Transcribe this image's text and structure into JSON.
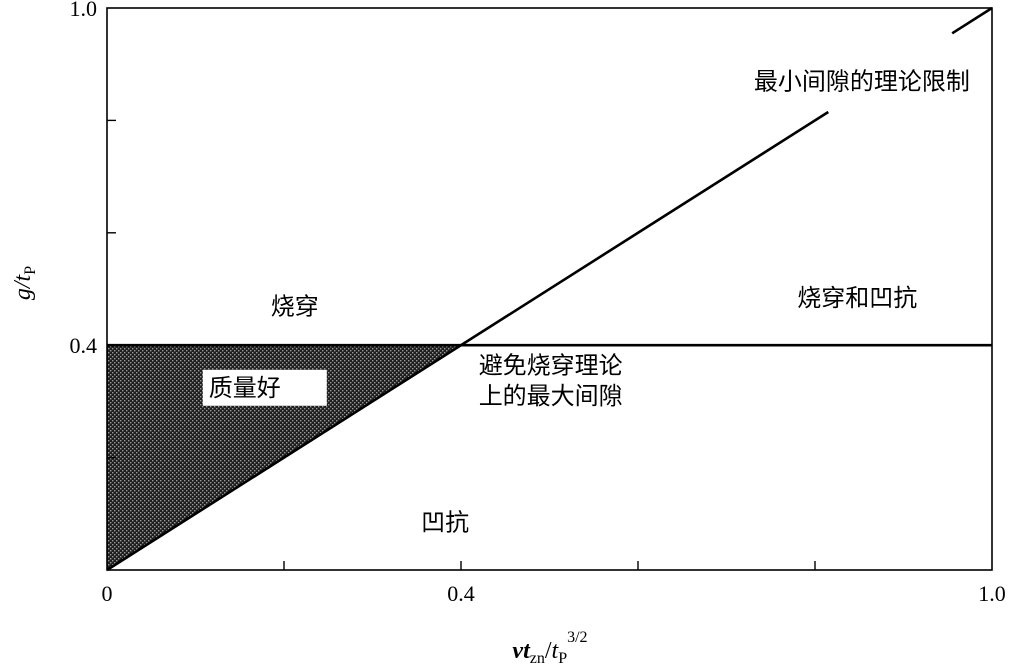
{
  "chart_data": {
    "type": "line",
    "title": "",
    "xlim": [
      0,
      1.0
    ],
    "ylim": [
      0,
      1.0
    ],
    "x_ticks": [
      0.2,
      0.4,
      0.6,
      0.8
    ],
    "y_ticks": [
      0.2,
      0.4,
      0.6,
      0.8
    ],
    "x_tick_labels": [
      {
        "value": 0,
        "label": "0"
      },
      {
        "value": 0.4,
        "label": "0.4"
      },
      {
        "value": 1.0,
        "label": "1.0"
      }
    ],
    "y_tick_labels": [
      {
        "value": 0.4,
        "label": "0.4"
      },
      {
        "value": 1.0,
        "label": "1.0"
      }
    ],
    "xlabel": {
      "main": "vt",
      "main_sub": "zn",
      "slash": "/",
      "den": "t",
      "den_sub": "P",
      "den_sup": "3/2"
    },
    "ylabel": {
      "main": "g/t",
      "sub": "P"
    },
    "series": [
      {
        "name": "最小间隙的理论限制",
        "segments": [
          [
            [
              0.0,
              0.0
            ],
            [
              0.815,
              0.815
            ]
          ],
          [
            [
              0.955,
              0.955
            ],
            [
              1.0,
              1.0
            ]
          ]
        ]
      },
      {
        "name": "避免烧穿理论上的最大间隙",
        "segments": [
          [
            [
              0.0,
              0.4
            ],
            [
              1.0,
              0.4
            ]
          ]
        ]
      }
    ],
    "shaded_region": {
      "label": "质量好",
      "polygon": [
        [
          0.0,
          0.0
        ],
        [
          0.4,
          0.4
        ],
        [
          0.0,
          0.4
        ]
      ]
    },
    "annotations": [
      {
        "text": "最小间隙的理论限制",
        "x": 0.975,
        "y": 0.855
      },
      {
        "text": "烧穿",
        "x": 0.185,
        "y": 0.455
      },
      {
        "text": "烧穿和凹抗",
        "x": 0.78,
        "y": 0.47
      },
      {
        "text": "质量好",
        "x": 0.115,
        "y": 0.31
      },
      {
        "text": "避免烧穿理论",
        "x": 0.42,
        "y": 0.35
      },
      {
        "text": "上的最大间隙",
        "x": 0.42,
        "y": 0.295
      },
      {
        "text": "凹抗",
        "x": 0.355,
        "y": 0.07
      }
    ],
    "grid": false,
    "colors": {
      "line": "#000000",
      "fill": "#2a2a2a",
      "background": "#ffffff"
    }
  }
}
